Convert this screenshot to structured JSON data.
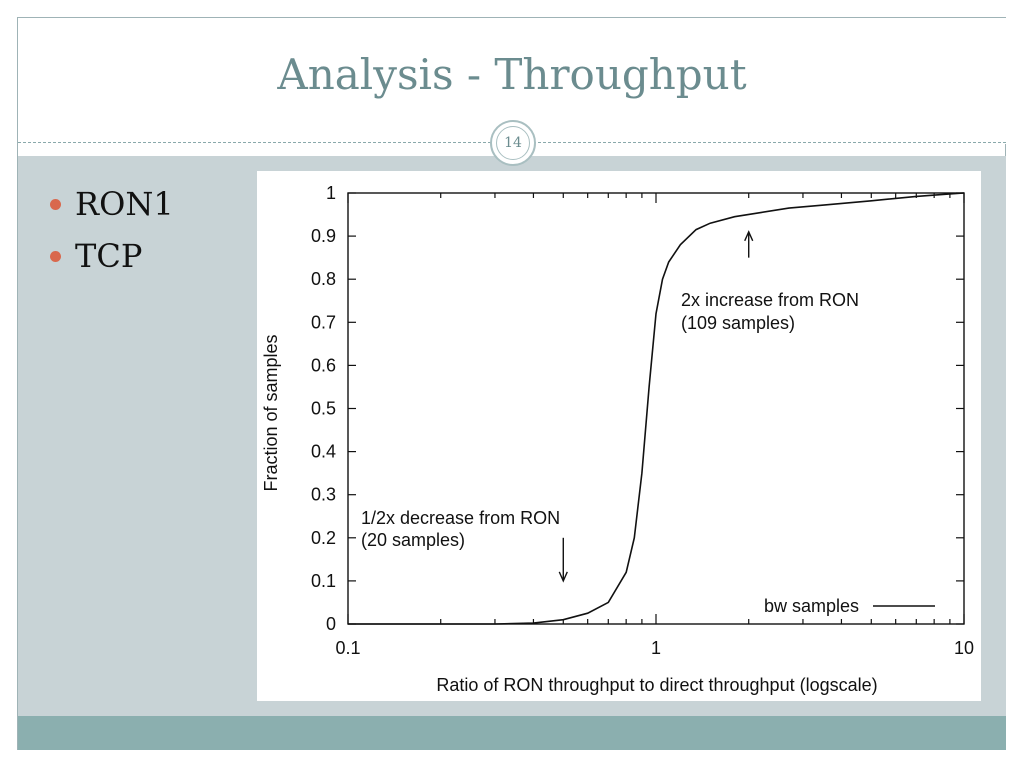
{
  "slide": {
    "title": "Analysis - Throughput",
    "page_number": "14",
    "bullets": [
      {
        "label": "RON1"
      },
      {
        "label": "TCP"
      }
    ]
  },
  "colors": {
    "title": "#6b8c8f",
    "content_bg": "#c8d3d6",
    "footer_bg": "#8bafaf",
    "bullet": "#d9684d"
  },
  "chart_data": {
    "type": "line",
    "title": "",
    "xlabel": "Ratio of RON throughput to direct throughput (logscale)",
    "ylabel": "Fraction of samples",
    "xscale": "log",
    "xlim": [
      0.1,
      10
    ],
    "ylim": [
      0,
      1
    ],
    "x_tick_labels": [
      "0.1",
      "1",
      "10"
    ],
    "y_tick_labels": [
      "0",
      "0.1",
      "0.2",
      "0.3",
      "0.4",
      "0.5",
      "0.6",
      "0.7",
      "0.8",
      "0.9",
      "1"
    ],
    "grid": false,
    "legend_position": "bottom-right",
    "series": [
      {
        "name": "bw samples",
        "x": [
          0.1,
          0.3,
          0.4,
          0.5,
          0.6,
          0.7,
          0.8,
          0.85,
          0.9,
          0.95,
          1.0,
          1.05,
          1.1,
          1.2,
          1.35,
          1.5,
          1.8,
          2.2,
          2.7,
          3.5,
          5,
          7,
          9,
          10
        ],
        "y": [
          0,
          0,
          0.002,
          0.01,
          0.025,
          0.05,
          0.12,
          0.2,
          0.35,
          0.55,
          0.72,
          0.8,
          0.84,
          0.88,
          0.915,
          0.93,
          0.945,
          0.955,
          0.965,
          0.972,
          0.982,
          0.992,
          0.998,
          1.0
        ]
      }
    ],
    "annotations": [
      {
        "text_line1": "2x increase from RON",
        "text_line2": "(109 samples)",
        "arrow_x": 2,
        "arrow_y_from": 0.85,
        "arrow_y_to": 0.91
      },
      {
        "text_line1": "1/2x decrease from RON",
        "text_line2": "(20 samples)",
        "arrow_x": 0.5,
        "arrow_y_from": 0.2,
        "arrow_y_to": 0.1
      }
    ]
  }
}
